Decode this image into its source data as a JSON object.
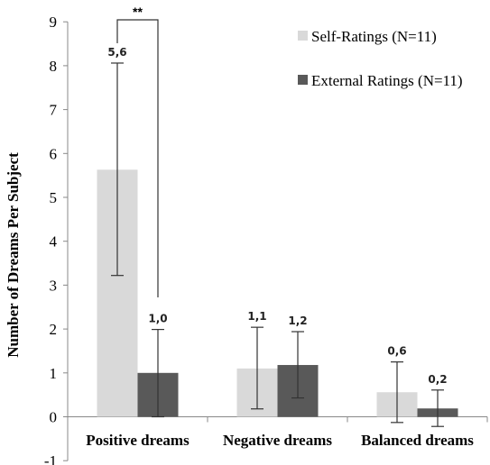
{
  "chart_data": {
    "type": "bar",
    "title": "",
    "xlabel": "",
    "ylabel": "Number of Dreams Per Subject",
    "ylim": [
      -1,
      9
    ],
    "yticks": [
      "-1",
      "0",
      "1",
      "2",
      "3",
      "4",
      "5",
      "6",
      "7",
      "8",
      "9"
    ],
    "categories": [
      "Positive dreams",
      "Negative dreams",
      "Balanced dreams"
    ],
    "series": [
      {
        "name": "Self-Ratings (N=11)",
        "color": "#d9d9d9",
        "values": [
          5.63,
          1.1,
          0.56
        ],
        "labels": [
          "5,6",
          "1,1",
          "0,6"
        ],
        "error_low": [
          3.22,
          0.18,
          -0.13
        ],
        "error_high": [
          8.06,
          2.04,
          1.25
        ]
      },
      {
        "name": "External Ratings (N=11)",
        "color": "#595959",
        "values": [
          1.0,
          1.18,
          0.19
        ],
        "labels": [
          "1,0",
          "1,2",
          "0,2"
        ],
        "error_low": [
          0.0,
          0.43,
          -0.22
        ],
        "error_high": [
          1.99,
          1.94,
          0.61
        ]
      }
    ],
    "significance": {
      "label": "**",
      "category_index": 0
    },
    "legend_position": "top-right",
    "grid": false
  }
}
